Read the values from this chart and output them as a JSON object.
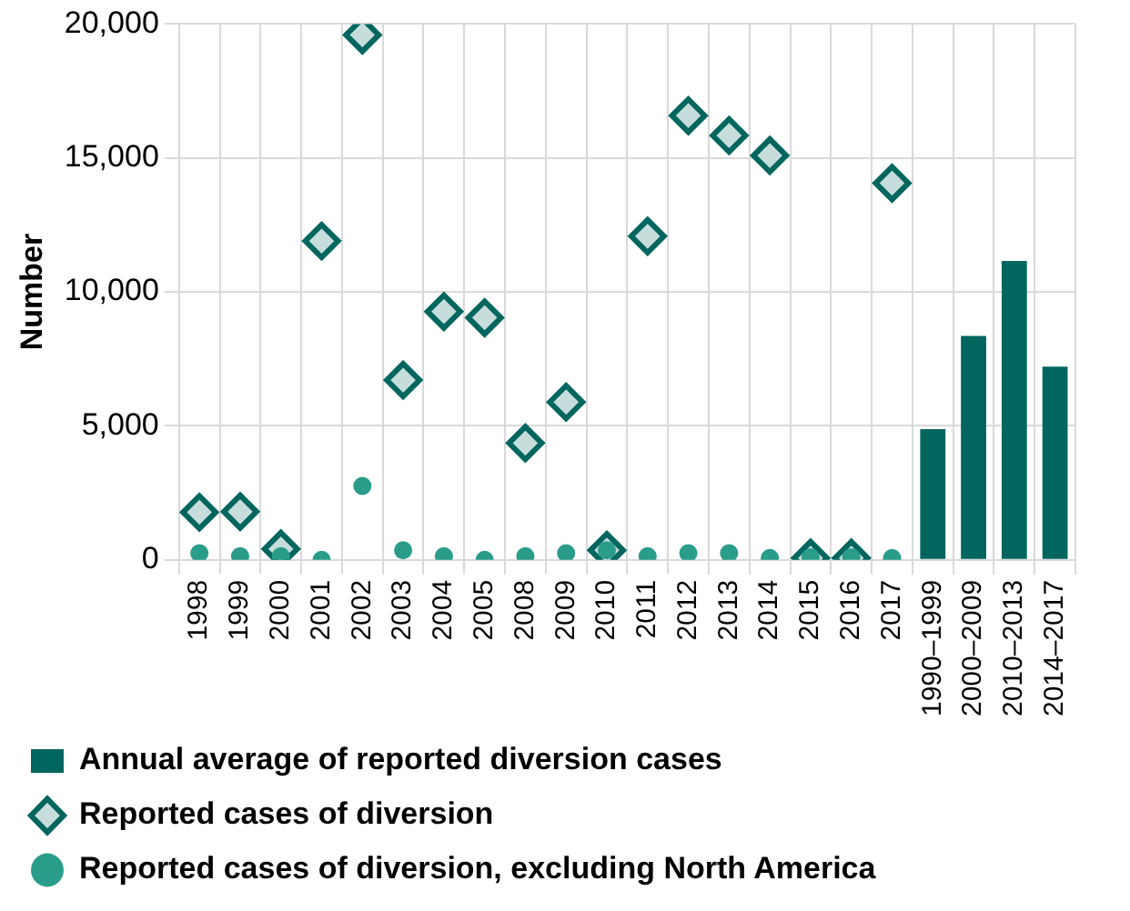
{
  "chart_data": {
    "type": "bar",
    "ylabel": "Number",
    "categories": [
      "1998",
      "1999",
      "2000",
      "2001",
      "2002",
      "2003",
      "2004",
      "2005",
      "2008",
      "2009",
      "2010",
      "2011",
      "2012",
      "2013",
      "2014",
      "2015",
      "2016",
      "2017",
      "1990–1999",
      "2000–2009",
      "2010–2013",
      "2014–2017"
    ],
    "series": [
      {
        "name": "Annual average of reported diversion cases",
        "color": "#00665e",
        "values": [
          null,
          null,
          null,
          null,
          null,
          null,
          null,
          null,
          null,
          null,
          null,
          null,
          null,
          null,
          null,
          null,
          null,
          null,
          4880,
          8360,
          11160,
          7210
        ]
      },
      {
        "name": "Reported cases of diversion",
        "type": "scatter",
        "marker": "diamond",
        "color": "#00665e",
        "values": [
          1780,
          1800,
          410,
          11900,
          19590,
          6710,
          9270,
          9040,
          4360,
          5890,
          360,
          12080,
          16580,
          15840,
          15090,
          70,
          70,
          14060,
          null,
          null,
          null,
          null
        ]
      },
      {
        "name": "Reported cases of diversion, excluding North America",
        "type": "scatter",
        "marker": "circle",
        "color": "#2a9d8a",
        "values": [
          250,
          140,
          140,
          0,
          2760,
          360,
          140,
          0,
          140,
          250,
          360,
          140,
          250,
          250,
          70,
          100,
          100,
          70,
          null,
          null,
          null,
          null
        ]
      }
    ],
    "ylim": [
      0,
      20000
    ],
    "yticks": [
      0,
      {
        "value": 5000,
        "label": "5,000"
      },
      {
        "value": 10000,
        "label": "10,000"
      },
      {
        "value": 15000,
        "label": "15,000"
      },
      {
        "value": 20000,
        "label": "20,000"
      }
    ],
    "grid": true,
    "legend": "bottom"
  }
}
